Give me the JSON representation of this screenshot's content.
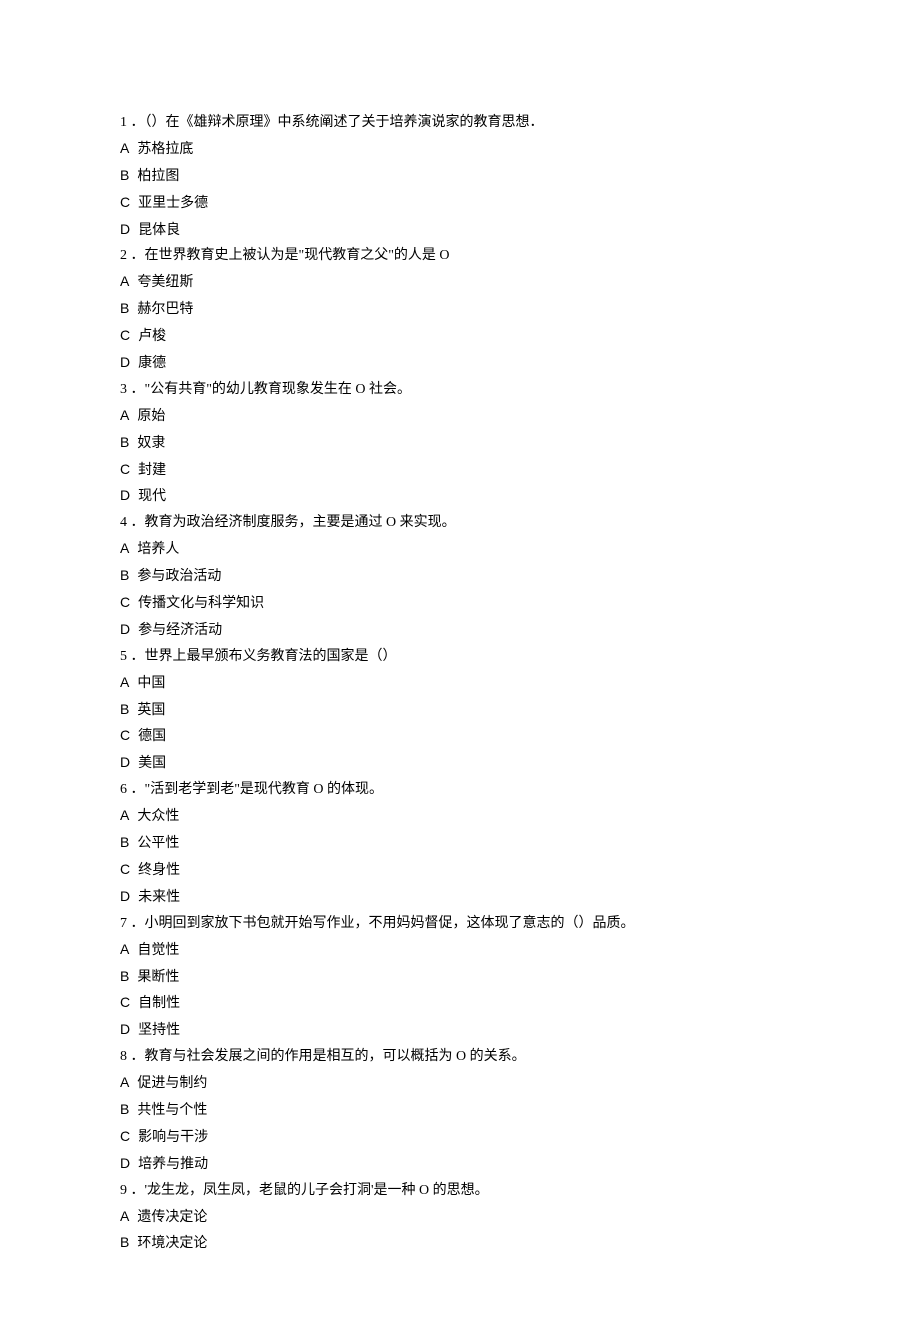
{
  "document": {
    "font_family": "SimSun",
    "font_size_pt": 10.5,
    "text_color": "#000000",
    "background_color": "#ffffff",
    "line_height": 1.85
  },
  "questions": [
    {
      "num": "1",
      "sep": " ．",
      "text": "（）在《雄辩术原理》中系统阐述了关于培养演说家的教育思想．",
      "options": [
        {
          "letter": "A",
          "text": "苏格拉底"
        },
        {
          "letter": "B",
          "text": "柏拉图"
        },
        {
          "letter": "C",
          "text": "亚里士多德"
        },
        {
          "letter": "D",
          "text": "昆体良"
        }
      ]
    },
    {
      "num": "2",
      "sep": " ．",
      "text": "在世界教育史上被认为是\"现代教育之父\"的人是 O",
      "options": [
        {
          "letter": "A",
          "text": "夸美纽斯"
        },
        {
          "letter": "B",
          "text": "赫尔巴特"
        },
        {
          "letter": "C",
          "text": "卢梭"
        },
        {
          "letter": "D",
          "text": "康德"
        }
      ]
    },
    {
      "num": "3",
      "sep": " ．",
      "text": "\"公有共育\"的幼儿教育现象发生在 O 社会。",
      "options": [
        {
          "letter": "A",
          "text": "原始"
        },
        {
          "letter": "B",
          "text": "奴隶"
        },
        {
          "letter": "C",
          "text": "封建"
        },
        {
          "letter": "D",
          "text": "现代"
        }
      ]
    },
    {
      "num": "4",
      "sep": "  ．",
      "text": "教育为政治经济制度服务，主要是通过 O 来实现。",
      "options": [
        {
          "letter": "A",
          "text": "培养人"
        },
        {
          "letter": "B",
          "text": "参与政治活动"
        },
        {
          "letter": "C",
          "text": "传播文化与科学知识"
        },
        {
          "letter": "D",
          "text": "参与经济活动"
        }
      ]
    },
    {
      "num": "5",
      "sep": "  ．",
      "text": "世界上最早颁布义务教育法的国家是（）",
      "options": [
        {
          "letter": "A",
          "text": "中国"
        },
        {
          "letter": "B",
          "text": "英国"
        },
        {
          "letter": "C",
          "text": "德国"
        },
        {
          "letter": "D",
          "text": "美国"
        }
      ]
    },
    {
      "num": "6",
      "sep": " ．",
      "text": "\"活到老学到老\"是现代教育 O 的体现。",
      "options": [
        {
          "letter": "A",
          "text": "大众性"
        },
        {
          "letter": "B",
          "text": "公平性"
        },
        {
          "letter": "C",
          "text": "终身性"
        },
        {
          "letter": "D",
          "text": "未来性"
        }
      ]
    },
    {
      "num": "7",
      "sep": " ．",
      "text": "小明回到家放下书包就开始写作业，不用妈妈督促，这体现了意志的（）品质。",
      "options": [
        {
          "letter": "A",
          "text": "自觉性"
        },
        {
          "letter": "B",
          "text": "果断性"
        },
        {
          "letter": "C",
          "text": "自制性"
        },
        {
          "letter": "D",
          "text": "坚持性"
        }
      ]
    },
    {
      "num": "8",
      "sep": " ．",
      "text": "教育与社会发展之间的作用是相互的，可以概括为 O 的关系。",
      "options": [
        {
          "letter": "A",
          "text": "促进与制约"
        },
        {
          "letter": "B",
          "text": "共性与个性"
        },
        {
          "letter": "C",
          "text": "影响与干涉"
        },
        {
          "letter": "D",
          "text": "培养与推动"
        }
      ]
    },
    {
      "num": "9",
      "sep": " ．",
      "text": "'龙生龙，凤生凤，老鼠的儿子会打洞'是一种 O 的思想。",
      "options": [
        {
          "letter": "A",
          "text": "遗传决定论"
        },
        {
          "letter": "B",
          "text": "环境决定论"
        }
      ]
    }
  ]
}
